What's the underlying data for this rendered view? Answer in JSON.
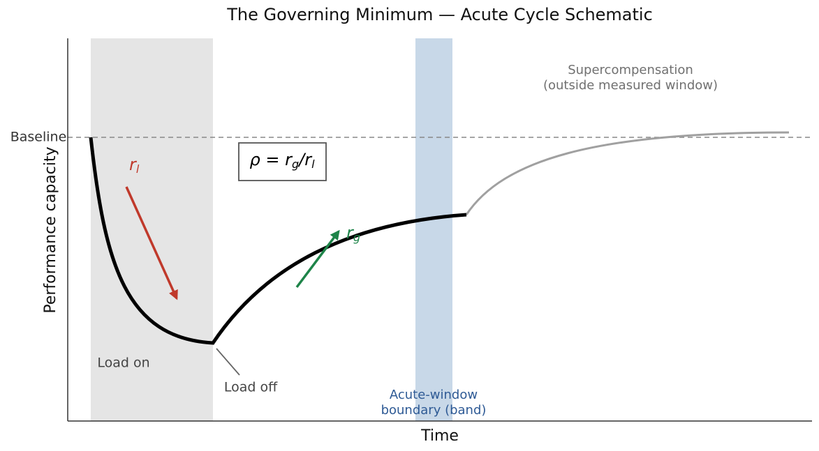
{
  "title": "The Governing Minimum — Acute Cycle Schematic",
  "axes": {
    "x_label": "Time",
    "y_label": "Performance capacity",
    "baseline_label": "Baseline"
  },
  "annotations": {
    "loss_rate": {
      "base": "r",
      "sub": "l"
    },
    "gain_rate": {
      "base": "r",
      "sub": "g"
    },
    "ratio": {
      "parts": [
        "ρ = r",
        "g",
        "/r",
        "l"
      ]
    },
    "supercompensation": [
      "Supercompensation",
      "(outside measured window)"
    ],
    "load_on": "Load on",
    "load_off": "Load off",
    "acute_window": [
      "Acute-window",
      "boundary (band)"
    ]
  }
}
